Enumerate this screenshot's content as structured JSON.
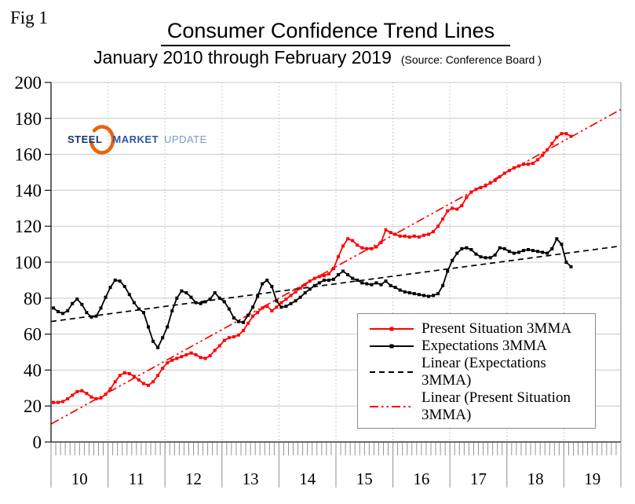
{
  "fig_label": "Fig 1",
  "header": {
    "title": "Consumer Confidence Trend Lines",
    "subtitle": "January 2010 through February 2019",
    "source": "(Source: Conference Board )"
  },
  "logo": {
    "steel": "STEEL",
    "market": "MARKET",
    "update": "UPDATE",
    "steel_color": "#17356E",
    "market_color": "#2B55A4",
    "update_color": "#7C99C9",
    "swoosh_color": "#E8650F"
  },
  "chart_data": {
    "type": "line",
    "title": "Consumer Confidence Trend Lines",
    "subtitle": "January 2010 through February 2019",
    "source": "(Source: Conference Board )",
    "grid": "on",
    "legend_position": "lower-right-inside",
    "x": {
      "start": "2010-01",
      "end": "2019-02",
      "interval": "monthly",
      "year_labels": [
        "10",
        "11",
        "12",
        "13",
        "14",
        "15",
        "16",
        "17",
        "18",
        "19"
      ],
      "months_per_year": 12
    },
    "y": {
      "min": 0,
      "max": 200,
      "step": 20,
      "tick_labels": [
        "0",
        "20",
        "40",
        "60",
        "80",
        "100",
        "120",
        "140",
        "160",
        "180",
        "200"
      ]
    },
    "series": [
      {
        "name": "Present Situation 3MMA",
        "color": "#FF0000",
        "marker": "square",
        "values": [
          22,
          22,
          22.5,
          24,
          26,
          28,
          28.5,
          27,
          25,
          24,
          24.5,
          26.5,
          29.5,
          33.5,
          37,
          38.5,
          38,
          36.5,
          34.5,
          32.5,
          31.5,
          33.5,
          37,
          41,
          44,
          45.5,
          46.5,
          47.5,
          48.5,
          49.5,
          48.5,
          47,
          46.5,
          48,
          51,
          53.5,
          56.5,
          58,
          58.5,
          59.5,
          62,
          66,
          70,
          72,
          74.5,
          75.5,
          73,
          75,
          77.5,
          79.5,
          81.5,
          83.5,
          85.5,
          87.5,
          89.5,
          91,
          92,
          92.5,
          93.5,
          96.5,
          103,
          109,
          113,
          112,
          109.5,
          108,
          107.5,
          107.5,
          108.5,
          111,
          118,
          116.5,
          115.5,
          114.5,
          114.5,
          114,
          114.5,
          114,
          115,
          115.5,
          117,
          120,
          124,
          128.5,
          130,
          129.5,
          131.5,
          136,
          139,
          140.5,
          141.5,
          142.5,
          144,
          145.5,
          147.5,
          149.5,
          151,
          152.5,
          153.5,
          154.5,
          154.5,
          155,
          157,
          159.5,
          162.5,
          166,
          169.5,
          171.5,
          171.5,
          170
        ]
      },
      {
        "name": "Expectations 3MMA",
        "color": "#000000",
        "marker": "square",
        "values": [
          74.5,
          72.5,
          71.5,
          73,
          77,
          79.5,
          76.5,
          72,
          69.5,
          70,
          74.5,
          80.5,
          86,
          90,
          89.5,
          86.5,
          82,
          77.5,
          74,
          72,
          64,
          56,
          52.5,
          58,
          64,
          73,
          80,
          84,
          83,
          80.5,
          77.5,
          77,
          78,
          79.5,
          83,
          80,
          78,
          74,
          69,
          67,
          66.5,
          70.5,
          75,
          81,
          88,
          90,
          86.5,
          78.5,
          75,
          75.5,
          77,
          78.5,
          80.5,
          83,
          85,
          87,
          88.5,
          90,
          90,
          90.5,
          93,
          95,
          93,
          91,
          90,
          88.5,
          88,
          87.5,
          88.5,
          87.5,
          89.5,
          87,
          86,
          84.5,
          83.5,
          83,
          82.5,
          82,
          81.5,
          81,
          81.5,
          82.5,
          87,
          95,
          101,
          105,
          107.5,
          108,
          107,
          104.5,
          103,
          102.5,
          102.5,
          104,
          108,
          107.5,
          106,
          105,
          105.5,
          106.5,
          107,
          106.5,
          106,
          105.5,
          105,
          107.5,
          113,
          110,
          100,
          97.5
        ]
      }
    ],
    "trend_lines": [
      {
        "name": "Linear (Expectations 3MMA)",
        "color": "#000000",
        "dash": "7 5",
        "from": 67,
        "to": 109
      },
      {
        "name": "Linear (Present Situation 3MMA)",
        "color": "#FF0000",
        "dash": "11 4 2.5 4 2.5 4",
        "from": 10,
        "to": 185
      }
    ],
    "legend": {
      "entries": [
        {
          "label": "Present Situation 3MMA",
          "color": "#FF0000",
          "dash": null,
          "marker": true
        },
        {
          "label": "Expectations 3MMA",
          "color": "#000000",
          "dash": null,
          "marker": true
        },
        {
          "label": "Linear (Expectations 3MMA)",
          "color": "#000000",
          "dash": "7 5",
          "marker": false
        },
        {
          "label": "Linear (Present Situation 3MMA)",
          "color": "#FF0000",
          "dash": "11 4 2.5 4 2.5 4",
          "marker": false
        }
      ]
    }
  }
}
